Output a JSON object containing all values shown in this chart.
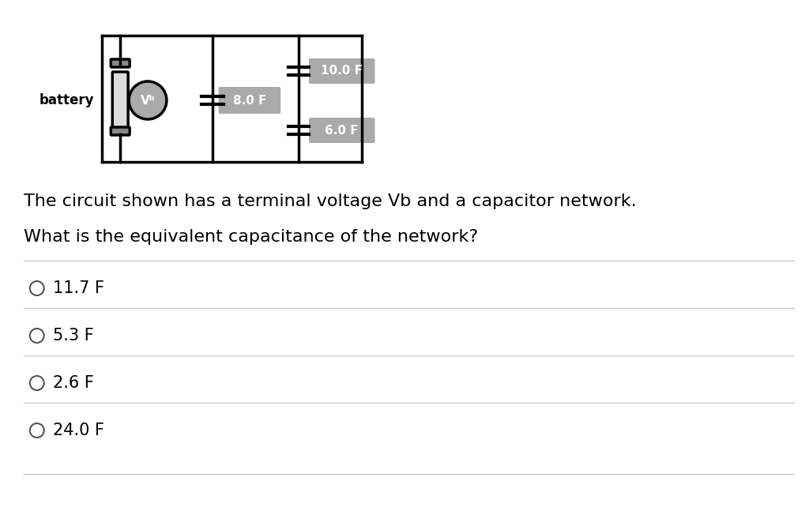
{
  "bg_color": "#ffffff",
  "circuit_diagram": {
    "battery_label": "battery",
    "vb_label": "Vᵇ",
    "cap1_label": "8.0 F",
    "cap2_label": "10.0 F",
    "cap3_label": "6.0 F"
  },
  "question_line1": "The circuit shown has a terminal voltage Vb and a capacitor network.",
  "question_line2": "What is the equivalent capacitance of the network?",
  "choices": [
    "11.7 F",
    "5.3 F",
    "2.6 F",
    "24.0 F"
  ],
  "choice_fontsize": 15,
  "question_fontsize": 16,
  "divider_color": "#cccccc",
  "text_color": "#000000",
  "circuit_color": "#000000",
  "cap_box_color": "#aaaaaa",
  "cap_box_text_color": "#ffffff",
  "battery_circle_color": "#aaaaaa"
}
